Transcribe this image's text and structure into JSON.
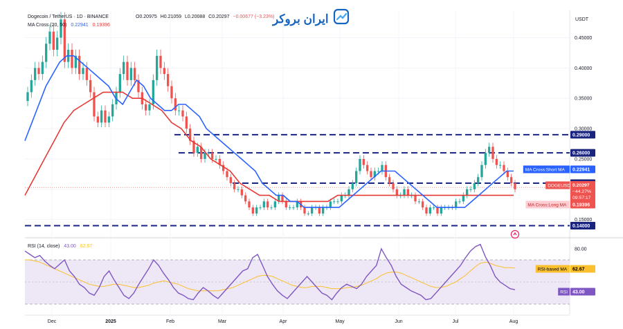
{
  "header": {
    "symbol_line": "Dogecoin / TetherUS · 1D · BINANCE",
    "ohlc": {
      "o": "O0.20975",
      "h": "H0.21059",
      "l": "L0.20088",
      "c": "C0.20297",
      "chg": "−0.00677 (−3.23%)"
    },
    "ma_line": "MA Cross (20, 50)",
    "ma_short_val": "0.22941",
    "ma_long_val": "0.19396",
    "rsi_line": "RSI (14, close)",
    "rsi_val": "43.00",
    "rsi_ma_val": "62.67"
  },
  "watermark": "ایران بروکر",
  "axis_unit": "USDT",
  "colors": {
    "up": "#26a69a",
    "down": "#ef5350",
    "ma_short": "#2962ff",
    "ma_long": "#e53935",
    "levels": "#1a237e",
    "rsi": "#7e57c2",
    "rsi_ma": "#fbc02d",
    "rsi_band": "#ede7f6"
  },
  "chart_data": [
    {
      "type": "candlestick",
      "title": "Dogecoin / TetherUS · 1D · BINANCE",
      "price_axis_ticks": [
        "0.45000",
        "0.40000",
        "0.35000",
        "0.30000",
        "0.25000",
        "0.20000",
        "0.15000"
      ],
      "price_axis_tick_values": [
        0.45,
        0.4,
        0.35,
        0.3,
        0.25,
        0.2,
        0.15
      ],
      "ylim": [
        0.12,
        0.495
      ],
      "x_labels": [
        "Dec",
        "2025",
        "Feb",
        "Mar",
        "Apr",
        "May",
        "Jun",
        "Jul",
        "Aug"
      ],
      "horizontal_levels": [
        {
          "value": 0.29,
          "label": "0.29000"
        },
        {
          "value": 0.26,
          "label": "0.26000"
        },
        {
          "value": 0.21,
          "label": "0.21000"
        },
        {
          "value": 0.14,
          "label": "0.14000"
        }
      ],
      "current_price_label": {
        "name": "DOGEUSDT",
        "value": "0.20297",
        "change": "−44.27%",
        "countdown": "09:57:17"
      },
      "ma_short_label": {
        "name": "MA Cross:Short MA",
        "value": "0.22941"
      },
      "ma_long_label": {
        "name": "MA Cross:Long MA",
        "value": "0.19396"
      },
      "series": [
        {
          "name": "Close",
          "values": [
            0.36,
            0.38,
            0.4,
            0.39,
            0.41,
            0.44,
            0.46,
            0.43,
            0.45,
            0.48,
            0.41,
            0.43,
            0.4,
            0.42,
            0.39,
            0.4,
            0.38,
            0.36,
            0.32,
            0.31,
            0.33,
            0.31,
            0.32,
            0.34,
            0.36,
            0.39,
            0.41,
            0.38,
            0.4,
            0.38,
            0.36,
            0.34,
            0.33,
            0.34,
            0.38,
            0.42,
            0.4,
            0.39,
            0.37,
            0.35,
            0.33,
            0.33,
            0.32,
            0.3,
            0.28,
            0.26,
            0.27,
            0.25,
            0.26,
            0.26,
            0.25,
            0.25,
            0.24,
            0.23,
            0.22,
            0.21,
            0.2,
            0.2,
            0.19,
            0.18,
            0.17,
            0.16,
            0.17,
            0.17,
            0.18,
            0.17,
            0.17,
            0.18,
            0.19,
            0.18,
            0.17,
            0.17,
            0.17,
            0.18,
            0.17,
            0.16,
            0.16,
            0.17,
            0.17,
            0.16,
            0.17,
            0.17,
            0.18,
            0.18,
            0.18,
            0.19,
            0.19,
            0.2,
            0.21,
            0.23,
            0.25,
            0.24,
            0.23,
            0.22,
            0.23,
            0.23,
            0.24,
            0.22,
            0.21,
            0.2,
            0.19,
            0.19,
            0.2,
            0.19,
            0.19,
            0.18,
            0.18,
            0.17,
            0.16,
            0.17,
            0.17,
            0.16,
            0.17,
            0.17,
            0.17,
            0.17,
            0.18,
            0.18,
            0.19,
            0.2,
            0.2,
            0.21,
            0.22,
            0.24,
            0.26,
            0.27,
            0.25,
            0.24,
            0.24,
            0.23,
            0.22,
            0.21,
            0.2
          ]
        },
        {
          "name": "MA Cross:Short MA",
          "values": [
            0.28,
            0.31,
            0.34,
            0.37,
            0.39,
            0.41,
            0.42,
            0.42,
            0.41,
            0.4,
            0.39,
            0.38,
            0.37,
            0.35,
            0.34,
            0.36,
            0.38,
            0.37,
            0.35,
            0.34,
            0.33,
            0.33,
            0.34,
            0.34,
            0.33,
            0.32,
            0.3,
            0.29,
            0.28,
            0.27,
            0.26,
            0.25,
            0.24,
            0.23,
            0.21,
            0.2,
            0.19,
            0.19,
            0.18,
            0.18,
            0.17,
            0.17,
            0.17,
            0.17,
            0.17,
            0.17,
            0.18,
            0.19,
            0.2,
            0.21,
            0.22,
            0.23,
            0.23,
            0.23,
            0.22,
            0.21,
            0.2,
            0.19,
            0.18,
            0.17,
            0.17,
            0.17,
            0.17,
            0.17,
            0.18,
            0.19,
            0.2,
            0.21,
            0.22,
            0.23,
            0.23
          ]
        },
        {
          "name": "MA Cross:Long MA",
          "values": [
            0.19,
            0.22,
            0.25,
            0.28,
            0.31,
            0.33,
            0.34,
            0.35,
            0.36,
            0.36,
            0.36,
            0.35,
            0.35,
            0.34,
            0.33,
            0.31,
            0.3,
            0.28,
            0.27,
            0.25,
            0.24,
            0.23,
            0.21,
            0.2,
            0.19,
            0.19,
            0.18,
            0.18,
            0.18,
            0.18,
            0.18,
            0.18,
            0.19,
            0.19,
            0.19,
            0.19,
            0.19,
            0.19,
            0.19,
            0.19,
            0.19,
            0.19,
            0.19,
            0.19,
            0.19,
            0.19,
            0.19,
            0.19,
            0.19,
            0.19,
            0.19
          ]
        }
      ]
    },
    {
      "type": "line",
      "title": "RSI (14, close)",
      "ylim": [
        20,
        90
      ],
      "axis_ticks": [
        "80.00"
      ],
      "axis_tick_values": [
        80
      ],
      "band": [
        30,
        70
      ],
      "rsi_label": {
        "name": "RSI",
        "value": "43.00"
      },
      "rsi_ma_label": {
        "name": "RSI-based MA",
        "value": "62.67"
      },
      "series": [
        {
          "name": "RSI",
          "values": [
            78,
            75,
            72,
            74,
            69,
            65,
            62,
            66,
            70,
            60,
            55,
            48,
            45,
            40,
            38,
            45,
            55,
            60,
            52,
            45,
            38,
            35,
            40,
            48,
            55,
            62,
            70,
            65,
            58,
            52,
            45,
            40,
            38,
            35,
            34,
            40,
            45,
            42,
            38,
            35,
            40,
            45,
            50,
            55,
            60,
            62,
            72,
            75,
            65,
            55,
            48,
            42,
            38,
            35,
            40,
            45,
            50,
            55,
            50,
            45,
            40,
            38,
            34,
            40,
            45,
            48,
            46,
            44,
            48,
            55,
            60,
            65,
            80,
            72,
            65,
            55,
            48,
            45,
            42,
            40,
            38,
            34,
            35,
            40,
            45,
            50,
            55,
            60,
            65,
            72,
            78,
            82,
            84,
            73,
            65,
            55,
            50,
            47,
            44,
            43
          ]
        },
        {
          "name": "RSI-based MA",
          "values": [
            70,
            70,
            69,
            68,
            66,
            64,
            62,
            60,
            58,
            56,
            54,
            52,
            50,
            48,
            47,
            46,
            46,
            47,
            48,
            48,
            47,
            46,
            45,
            45,
            46,
            47,
            49,
            50,
            51,
            50,
            49,
            48,
            46,
            44,
            43,
            42,
            42,
            42,
            42,
            42,
            43,
            44,
            45,
            47,
            49,
            51,
            53,
            55,
            56,
            56,
            55,
            53,
            51,
            49,
            47,
            46,
            45,
            45,
            46,
            46,
            46,
            45,
            44,
            44,
            44,
            45,
            45,
            46,
            47,
            49,
            51,
            53,
            56,
            58,
            59,
            59,
            58,
            56,
            54,
            52,
            50,
            48,
            46,
            45,
            45,
            46,
            48,
            50,
            53,
            56,
            60,
            64,
            67,
            68,
            67,
            65,
            64,
            63,
            63,
            62.67
          ]
        }
      ]
    }
  ]
}
